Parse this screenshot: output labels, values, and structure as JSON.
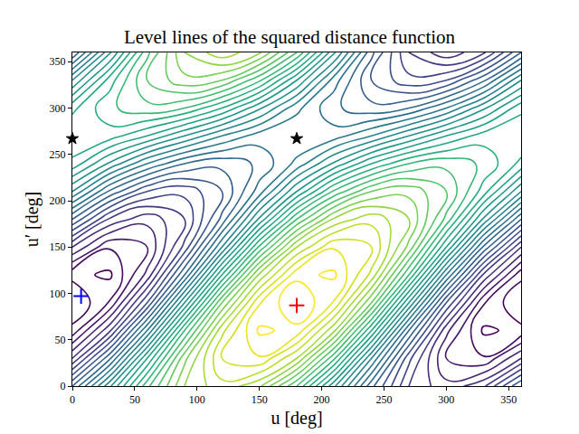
{
  "chart_data": {
    "type": "contour",
    "title": "Level lines of the squared distance function",
    "x_label": "u [deg]",
    "y_label": "u′ [deg]",
    "x": [
      0,
      30,
      60,
      90,
      120,
      150,
      180,
      210,
      240,
      270,
      300,
      330,
      360
    ],
    "y": [
      0,
      30,
      60,
      90,
      120,
      150,
      180,
      210,
      240,
      270,
      300,
      330,
      360
    ],
    "z": [
      [
        1.1,
        1.68,
        2.27,
        2.7,
        2.87,
        2.72,
        2.3,
        1.72,
        1.13,
        0.7,
        0.53,
        0.68,
        1.1
      ],
      [
        0.6,
        1.18,
        1.9,
        2.57,
        3.0,
        3.09,
        2.8,
        2.22,
        1.5,
        0.83,
        0.4,
        0.31,
        0.6
      ],
      [
        0.23,
        0.68,
        1.4,
        2.2,
        2.87,
        3.22,
        3.17,
        2.72,
        2.0,
        1.2,
        0.53,
        0.18,
        0.23
      ],
      [
        0.1,
        0.31,
        0.9,
        1.7,
        2.5,
        3.09,
        3.3,
        3.09,
        2.5,
        1.7,
        0.9,
        0.31,
        0.1
      ],
      [
        0.23,
        0.18,
        0.53,
        1.2,
        2.0,
        2.72,
        3.17,
        3.22,
        2.87,
        2.2,
        1.4,
        0.68,
        0.23
      ],
      [
        0.6,
        0.31,
        0.4,
        0.83,
        1.5,
        2.22,
        2.8,
        3.09,
        3.0,
        2.57,
        1.9,
        1.18,
        0.6
      ],
      [
        1.1,
        0.68,
        0.53,
        0.7,
        1.13,
        1.72,
        2.3,
        2.72,
        2.87,
        2.7,
        2.27,
        1.68,
        1.1
      ],
      [
        1.6,
        1.18,
        0.9,
        0.83,
        1.0,
        1.35,
        1.8,
        2.22,
        2.5,
        2.57,
        2.4,
        2.05,
        1.6
      ],
      [
        1.97,
        1.68,
        1.4,
        1.2,
        1.13,
        1.22,
        1.43,
        1.72,
        2.0,
        2.2,
        2.27,
        2.18,
        1.97
      ],
      [
        2.1,
        2.05,
        1.9,
        1.7,
        1.5,
        1.35,
        1.3,
        1.35,
        1.5,
        1.7,
        1.9,
        2.05,
        2.1
      ],
      [
        1.97,
        2.18,
        2.27,
        2.2,
        2.0,
        1.72,
        1.43,
        1.22,
        1.13,
        1.2,
        1.4,
        1.68,
        1.97
      ],
      [
        1.6,
        2.05,
        2.4,
        2.57,
        2.5,
        2.22,
        1.8,
        1.35,
        1.0,
        0.83,
        0.9,
        1.18,
        1.6
      ],
      [
        1.1,
        1.68,
        2.27,
        2.7,
        2.87,
        2.72,
        2.3,
        1.72,
        1.13,
        0.7,
        0.53,
        0.68,
        1.1
      ]
    ],
    "contour_levels": {
      "start": 0.2,
      "end": 3.2,
      "size": 0.1
    },
    "color": "Viridis",
    "xlim": [
      0,
      360
    ],
    "ylim": [
      0,
      360
    ],
    "xticks": [
      0,
      50,
      100,
      150,
      200,
      250,
      300,
      350
    ],
    "yticks": [
      0,
      50,
      100,
      150,
      200,
      250,
      300,
      350
    ],
    "grid": false,
    "series": [
      {
        "x": [
          7
        ],
        "y": [
          97
        ],
        "color": "#0000ff",
        "marker": "plus"
      },
      {
        "x": [
          180
        ],
        "y": [
          87
        ],
        "color": "#ff0000",
        "marker": "plus"
      },
      {
        "x": [
          0,
          180
        ],
        "y": [
          267,
          267
        ],
        "color": "#000000",
        "marker": "star"
      }
    ]
  }
}
